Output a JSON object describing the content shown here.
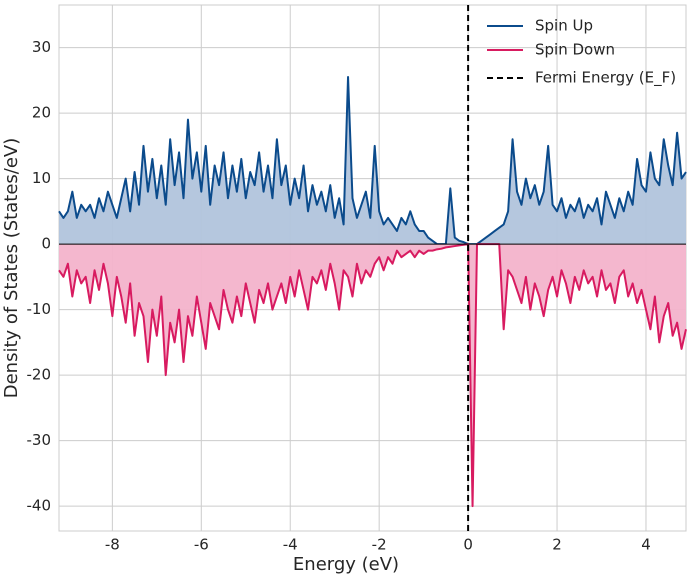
{
  "chart_data": {
    "type": "line",
    "xlabel": "Energy (eV)",
    "ylabel": "Density of States (States/eV)",
    "xlim": [
      -9.2,
      4.9
    ],
    "ylim": [
      -43.8,
      36.5
    ],
    "xticks": [
      -8,
      -6,
      -4,
      -2,
      0,
      2,
      4
    ],
    "yticks": [
      -40,
      -30,
      -20,
      -10,
      0,
      10,
      20,
      30
    ],
    "grid": true,
    "legend": "upper right",
    "x": [
      -9.2,
      -9.1,
      -9.0,
      -8.9,
      -8.8,
      -8.7,
      -8.6,
      -8.5,
      -8.4,
      -8.3,
      -8.2,
      -8.1,
      -8.0,
      -7.9,
      -7.8,
      -7.7,
      -7.6,
      -7.5,
      -7.4,
      -7.3,
      -7.2,
      -7.1,
      -7.0,
      -6.9,
      -6.8,
      -6.7,
      -6.6,
      -6.5,
      -6.4,
      -6.3,
      -6.2,
      -6.1,
      -6.0,
      -5.9,
      -5.8,
      -5.7,
      -5.6,
      -5.5,
      -5.4,
      -5.3,
      -5.2,
      -5.1,
      -5.0,
      -4.9,
      -4.8,
      -4.7,
      -4.6,
      -4.5,
      -4.4,
      -4.3,
      -4.2,
      -4.1,
      -4.0,
      -3.9,
      -3.8,
      -3.7,
      -3.6,
      -3.5,
      -3.4,
      -3.3,
      -3.2,
      -3.1,
      -3.0,
      -2.9,
      -2.8,
      -2.7,
      -2.6,
      -2.5,
      -2.4,
      -2.3,
      -2.2,
      -2.1,
      -2.0,
      -1.9,
      -1.8,
      -1.7,
      -1.6,
      -1.5,
      -1.4,
      -1.3,
      -1.2,
      -1.1,
      -1.0,
      -0.9,
      -0.8,
      -0.7,
      -0.6,
      -0.5,
      -0.4,
      -0.3,
      -0.2,
      -0.1,
      0.0,
      0.1,
      0.2,
      0.3,
      0.4,
      0.5,
      0.6,
      0.7,
      0.8,
      0.9,
      1.0,
      1.1,
      1.2,
      1.3,
      1.4,
      1.5,
      1.6,
      1.7,
      1.8,
      1.9,
      2.0,
      2.1,
      2.2,
      2.3,
      2.4,
      2.5,
      2.6,
      2.7,
      2.8,
      2.9,
      3.0,
      3.1,
      3.2,
      3.3,
      3.4,
      3.5,
      3.6,
      3.7,
      3.8,
      3.9,
      4.0,
      4.1,
      4.2,
      4.3,
      4.4,
      4.5,
      4.6,
      4.7,
      4.8,
      4.9
    ],
    "series": [
      {
        "name": "Spin Up",
        "color": "#0b4b8c",
        "fill": "#b1c4dc",
        "values": [
          5,
          4,
          5,
          8,
          4,
          6,
          5,
          6,
          4,
          7,
          5,
          8,
          6,
          4,
          7,
          10,
          5,
          11,
          6,
          15,
          8,
          13,
          7,
          12,
          6,
          16,
          9,
          14,
          7,
          19,
          10,
          14,
          8,
          15,
          6,
          12,
          9,
          14,
          7,
          12,
          8,
          13,
          7,
          11,
          9,
          14,
          8,
          12,
          7,
          16,
          9,
          12,
          6,
          10,
          7,
          12,
          5,
          9,
          6,
          8,
          5,
          9,
          4,
          7,
          3,
          25.5,
          7,
          4,
          6,
          8,
          4,
          15,
          5,
          3,
          4,
          3,
          2,
          4,
          3,
          5,
          3,
          2,
          2,
          1,
          0.5,
          0,
          0,
          0,
          8.5,
          1,
          0.5,
          0.3,
          0,
          0,
          0,
          0.5,
          1,
          1.5,
          2,
          2.5,
          3,
          5,
          16,
          8,
          6,
          10,
          7,
          9,
          6,
          8,
          15,
          6,
          5,
          7,
          4,
          6,
          5,
          7,
          4,
          6,
          5,
          7,
          3,
          8,
          6,
          4,
          7,
          5,
          8,
          6,
          13,
          9,
          8,
          14,
          10,
          9,
          16,
          12,
          9,
          17,
          10,
          11
        ]
      },
      {
        "name": "Spin Down",
        "color": "#d81b60",
        "fill": "#f3b3cb",
        "values": [
          -4,
          -5,
          -3,
          -8,
          -4,
          -6,
          -5,
          -9,
          -4,
          -7,
          -3,
          -6,
          -11,
          -5,
          -8,
          -12,
          -6,
          -14,
          -9,
          -11,
          -18,
          -10,
          -14,
          -8,
          -20,
          -12,
          -15,
          -10,
          -18,
          -11,
          -14,
          -8,
          -12,
          -16,
          -9,
          -11,
          -13,
          -7,
          -10,
          -12,
          -8,
          -11,
          -6,
          -9,
          -12,
          -7,
          -9,
          -6,
          -10,
          -8,
          -6,
          -9,
          -5,
          -8,
          -4,
          -7,
          -10,
          -5,
          -6,
          -4,
          -7,
          -3,
          -6,
          -10,
          -4,
          -5,
          -8,
          -3,
          -6,
          -4,
          -5,
          -3,
          -2,
          -4,
          -2,
          -3,
          -1,
          -2,
          -1.5,
          -1,
          -2,
          -1,
          -1.5,
          -1,
          -1,
          -0.8,
          -0.7,
          -0.5,
          -0.4,
          -0.3,
          -0.2,
          -0.1,
          0,
          -40,
          0,
          0,
          0,
          0,
          0,
          0,
          -13,
          -4,
          -5,
          -7,
          -9,
          -5,
          -10,
          -6,
          -8,
          -11,
          -7,
          -5,
          -8,
          -4,
          -6,
          -9,
          -5,
          -7,
          -4,
          -6,
          -5,
          -8,
          -4,
          -7,
          -6,
          -9,
          -5,
          -4,
          -8,
          -6,
          -9,
          -7,
          -10,
          -13,
          -8,
          -15,
          -11,
          -9,
          -14,
          -12,
          -16,
          -13
        ]
      }
    ],
    "vlines": [
      {
        "name": "Fermi Energy (E_F)",
        "x": 0,
        "color": "#000000"
      }
    ]
  }
}
